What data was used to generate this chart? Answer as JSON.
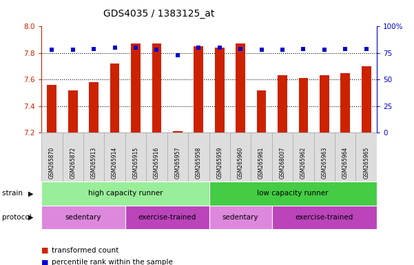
{
  "title": "GDS4035 / 1383125_at",
  "samples": [
    "GSM265870",
    "GSM265872",
    "GSM265913",
    "GSM265914",
    "GSM265915",
    "GSM265916",
    "GSM265957",
    "GSM265958",
    "GSM265959",
    "GSM265960",
    "GSM265961",
    "GSM268007",
    "GSM265962",
    "GSM265963",
    "GSM265964",
    "GSM265965"
  ],
  "bar_values": [
    7.56,
    7.52,
    7.58,
    7.72,
    7.87,
    7.87,
    7.21,
    7.85,
    7.84,
    7.87,
    7.52,
    7.63,
    7.61,
    7.63,
    7.65,
    7.7
  ],
  "dot_values": [
    78,
    78,
    79,
    80,
    80,
    78,
    73,
    80,
    80,
    79,
    78,
    78,
    79,
    78,
    79,
    79
  ],
  "ylim_left": [
    7.2,
    8.0
  ],
  "ylim_right": [
    0,
    100
  ],
  "bar_color": "#cc2200",
  "dot_color": "#0000cc",
  "yticks_left": [
    7.2,
    7.4,
    7.6,
    7.8,
    8.0
  ],
  "yticks_right": [
    0,
    25,
    50,
    75,
    100
  ],
  "ytick_labels_right": [
    "0",
    "25",
    "50",
    "75",
    "100%"
  ],
  "strain_groups": [
    {
      "label": "high capacity runner",
      "start": 0,
      "end": 8,
      "color": "#99ee99"
    },
    {
      "label": "low capacity runner",
      "start": 8,
      "end": 16,
      "color": "#44cc44"
    }
  ],
  "protocol_groups": [
    {
      "label": "sedentary",
      "start": 0,
      "end": 4,
      "color": "#dd88dd"
    },
    {
      "label": "exercise-trained",
      "start": 4,
      "end": 8,
      "color": "#bb44bb"
    },
    {
      "label": "sedentary",
      "start": 8,
      "end": 11,
      "color": "#dd88dd"
    },
    {
      "label": "exercise-trained",
      "start": 11,
      "end": 16,
      "color": "#bb44bb"
    }
  ],
  "strain_label": "strain",
  "protocol_label": "protocol",
  "legend_items": [
    {
      "color": "#cc2200",
      "label": "transformed count"
    },
    {
      "color": "#0000cc",
      "label": "percentile rank within the sample"
    }
  ],
  "background_color": "#ffffff",
  "tick_color_left": "#cc2200",
  "tick_color_right": "#0000cc",
  "cell_color": "#dddddd",
  "cell_edge_color": "#aaaaaa"
}
